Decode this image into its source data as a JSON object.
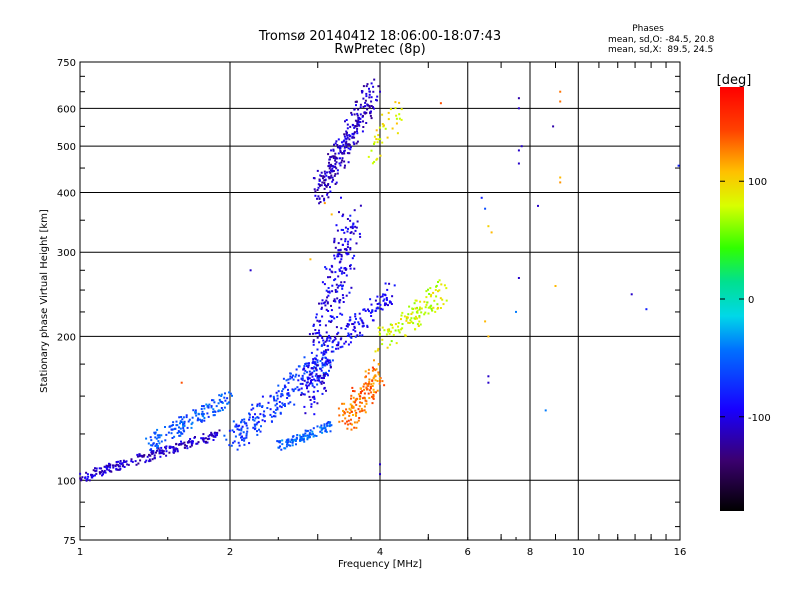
{
  "chart_data": {
    "type": "scatter",
    "title": "Tromsø 20140412 18:06:00-18:07:43",
    "subtitle": "RwPretec (8p)",
    "xlabel": "Frequency [MHz]",
    "ylabel": "Stationary phase Virtual Height [km]",
    "x_scale": "log2",
    "y_scale": "log",
    "xlim": [
      1,
      16
    ],
    "ylim": [
      75,
      750
    ],
    "x_ticks": [
      1,
      2,
      4,
      6,
      8,
      10,
      16
    ],
    "x_tick_labels": [
      "1",
      "2",
      "4",
      "6",
      "8",
      "10",
      "16"
    ],
    "y_ticks": [
      75,
      100,
      200,
      300,
      400,
      500,
      600,
      750
    ],
    "y_tick_labels": [
      "75",
      "100",
      "200",
      "300",
      "400",
      "500",
      "600",
      "750"
    ],
    "grid": true,
    "stats": {
      "header": "Phases",
      "line_o": "mean, sd,O: -84.5, 20.8",
      "line_x": "mean, sd,X:  89.5, 24.5"
    },
    "colorbar": {
      "label": "[deg]",
      "range": [
        -180,
        180
      ],
      "ticks": [
        100,
        0,
        -100
      ],
      "tick_labels": [
        "100",
        "0",
        "-100"
      ]
    },
    "clusters": [
      {
        "name": "low-E trace",
        "x": [
          1.0,
          1.9
        ],
        "y": [
          101,
          125
        ],
        "phase": -110,
        "n": 240,
        "spread": 0.02
      },
      {
        "name": "low cyan band",
        "x": [
          1.35,
          2.0
        ],
        "y": [
          118,
          148
        ],
        "phase": -55,
        "n": 160,
        "spread": 0.035
      },
      {
        "name": "mid F1 trace",
        "x": [
          2.0,
          3.2
        ],
        "y": [
          120,
          185
        ],
        "phase": -70,
        "n": 260,
        "spread": 0.06
      },
      {
        "name": "cyan knee",
        "x": [
          2.5,
          3.2
        ],
        "y": [
          118,
          130
        ],
        "phase": -50,
        "n": 110,
        "spread": 0.02
      },
      {
        "name": "F2 vertical",
        "x": [
          2.9,
          3.5
        ],
        "y": [
          150,
          350
        ],
        "phase": -100,
        "n": 300,
        "spread": 0.1
      },
      {
        "name": "orange trace",
        "x": [
          3.4,
          4.0
        ],
        "y": [
          132,
          170
        ],
        "phase": 130,
        "n": 150,
        "spread": 0.06
      },
      {
        "name": "yellow-green patch",
        "x": [
          4.0,
          5.4
        ],
        "y": [
          195,
          250
        ],
        "phase": 80,
        "n": 130,
        "spread": 0.05
      },
      {
        "name": "blue patch mid",
        "x": [
          3.3,
          4.2
        ],
        "y": [
          195,
          245
        ],
        "phase": -95,
        "n": 110,
        "spread": 0.05
      },
      {
        "name": "high blue cloud",
        "x": [
          3.0,
          3.9
        ],
        "y": [
          400,
          650
        ],
        "phase": -110,
        "n": 280,
        "spread": 0.06
      },
      {
        "name": "high green-yellow",
        "x": [
          3.8,
          4.4
        ],
        "y": [
          470,
          600
        ],
        "phase": 90,
        "n": 40,
        "spread": 0.06
      }
    ],
    "sparse_points": [
      {
        "x": 6.4,
        "y": 390,
        "phase": -80
      },
      {
        "x": 6.5,
        "y": 370,
        "phase": -60
      },
      {
        "x": 6.6,
        "y": 340,
        "phase": 100
      },
      {
        "x": 6.7,
        "y": 330,
        "phase": 110
      },
      {
        "x": 6.5,
        "y": 215,
        "phase": 110
      },
      {
        "x": 6.6,
        "y": 200,
        "phase": 110
      },
      {
        "x": 6.6,
        "y": 165,
        "phase": -110
      },
      {
        "x": 6.6,
        "y": 160,
        "phase": -110
      },
      {
        "x": 7.6,
        "y": 630,
        "phase": -120
      },
      {
        "x": 7.6,
        "y": 600,
        "phase": -110
      },
      {
        "x": 7.6,
        "y": 490,
        "phase": -110
      },
      {
        "x": 7.6,
        "y": 460,
        "phase": -110
      },
      {
        "x": 7.7,
        "y": 500,
        "phase": -110
      },
      {
        "x": 7.6,
        "y": 265,
        "phase": -110
      },
      {
        "x": 7.5,
        "y": 225,
        "phase": -40
      },
      {
        "x": 8.3,
        "y": 375,
        "phase": -110
      },
      {
        "x": 8.9,
        "y": 550,
        "phase": -120
      },
      {
        "x": 9.0,
        "y": 255,
        "phase": 110
      },
      {
        "x": 9.2,
        "y": 650,
        "phase": 130
      },
      {
        "x": 9.2,
        "y": 620,
        "phase": 130
      },
      {
        "x": 9.2,
        "y": 430,
        "phase": 110
      },
      {
        "x": 9.2,
        "y": 420,
        "phase": 120
      },
      {
        "x": 8.6,
        "y": 140,
        "phase": -40
      },
      {
        "x": 12.8,
        "y": 245,
        "phase": -110
      },
      {
        "x": 13.7,
        "y": 228,
        "phase": -80
      },
      {
        "x": 15.9,
        "y": 455,
        "phase": -80
      },
      {
        "x": 5.3,
        "y": 615,
        "phase": 140
      },
      {
        "x": 2.2,
        "y": 275,
        "phase": -110
      },
      {
        "x": 4.0,
        "y": 103,
        "phase": -110
      },
      {
        "x": 4.0,
        "y": 108,
        "phase": -110
      },
      {
        "x": 4.0,
        "y": 650,
        "phase": -110
      },
      {
        "x": 3.1,
        "y": 380,
        "phase": 120
      },
      {
        "x": 3.2,
        "y": 360,
        "phase": 110
      },
      {
        "x": 1.6,
        "y": 160,
        "phase": 140
      },
      {
        "x": 1.4,
        "y": 115,
        "phase": -110
      },
      {
        "x": 2.9,
        "y": 290,
        "phase": 110
      }
    ]
  }
}
